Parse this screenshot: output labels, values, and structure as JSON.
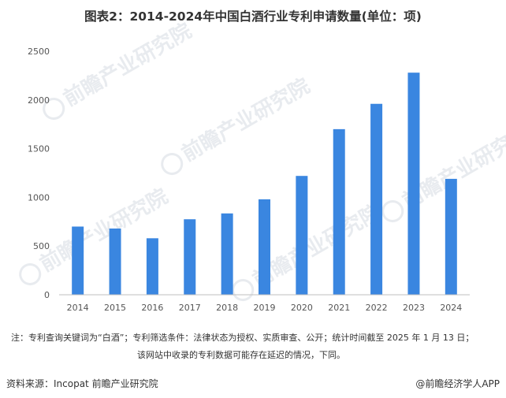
{
  "title": "图表2：2014-2024年中国白酒行业专利申请数量(单位：项)",
  "note_line1": "注：专利查询关键词为“白酒”；专利筛选条件：法律状态为授权、实质审查、公开；统计时间截至 2025 年 1 月 13 日；",
  "note_line2": "该网站中收录的专利数据可能存在延迟的情况，下同。",
  "source": "资料来源：Incopat 前瞻产业研究院",
  "credit": "@前瞻经济学人APP",
  "watermark": "前瞻产业研究院",
  "colors": {
    "bar": "#3a86e0",
    "axis": "#bfbfbf"
  },
  "chart_data": {
    "type": "bar",
    "categories": [
      "2014",
      "2015",
      "2016",
      "2017",
      "2018",
      "2019",
      "2020",
      "2021",
      "2022",
      "2023",
      "2024"
    ],
    "values": [
      700,
      680,
      580,
      775,
      835,
      980,
      1220,
      1700,
      1960,
      2280,
      1190
    ],
    "ylim": [
      0,
      2500
    ],
    "yticks": [
      0,
      500,
      1000,
      1500,
      2000,
      2500
    ],
    "grid": false
  }
}
